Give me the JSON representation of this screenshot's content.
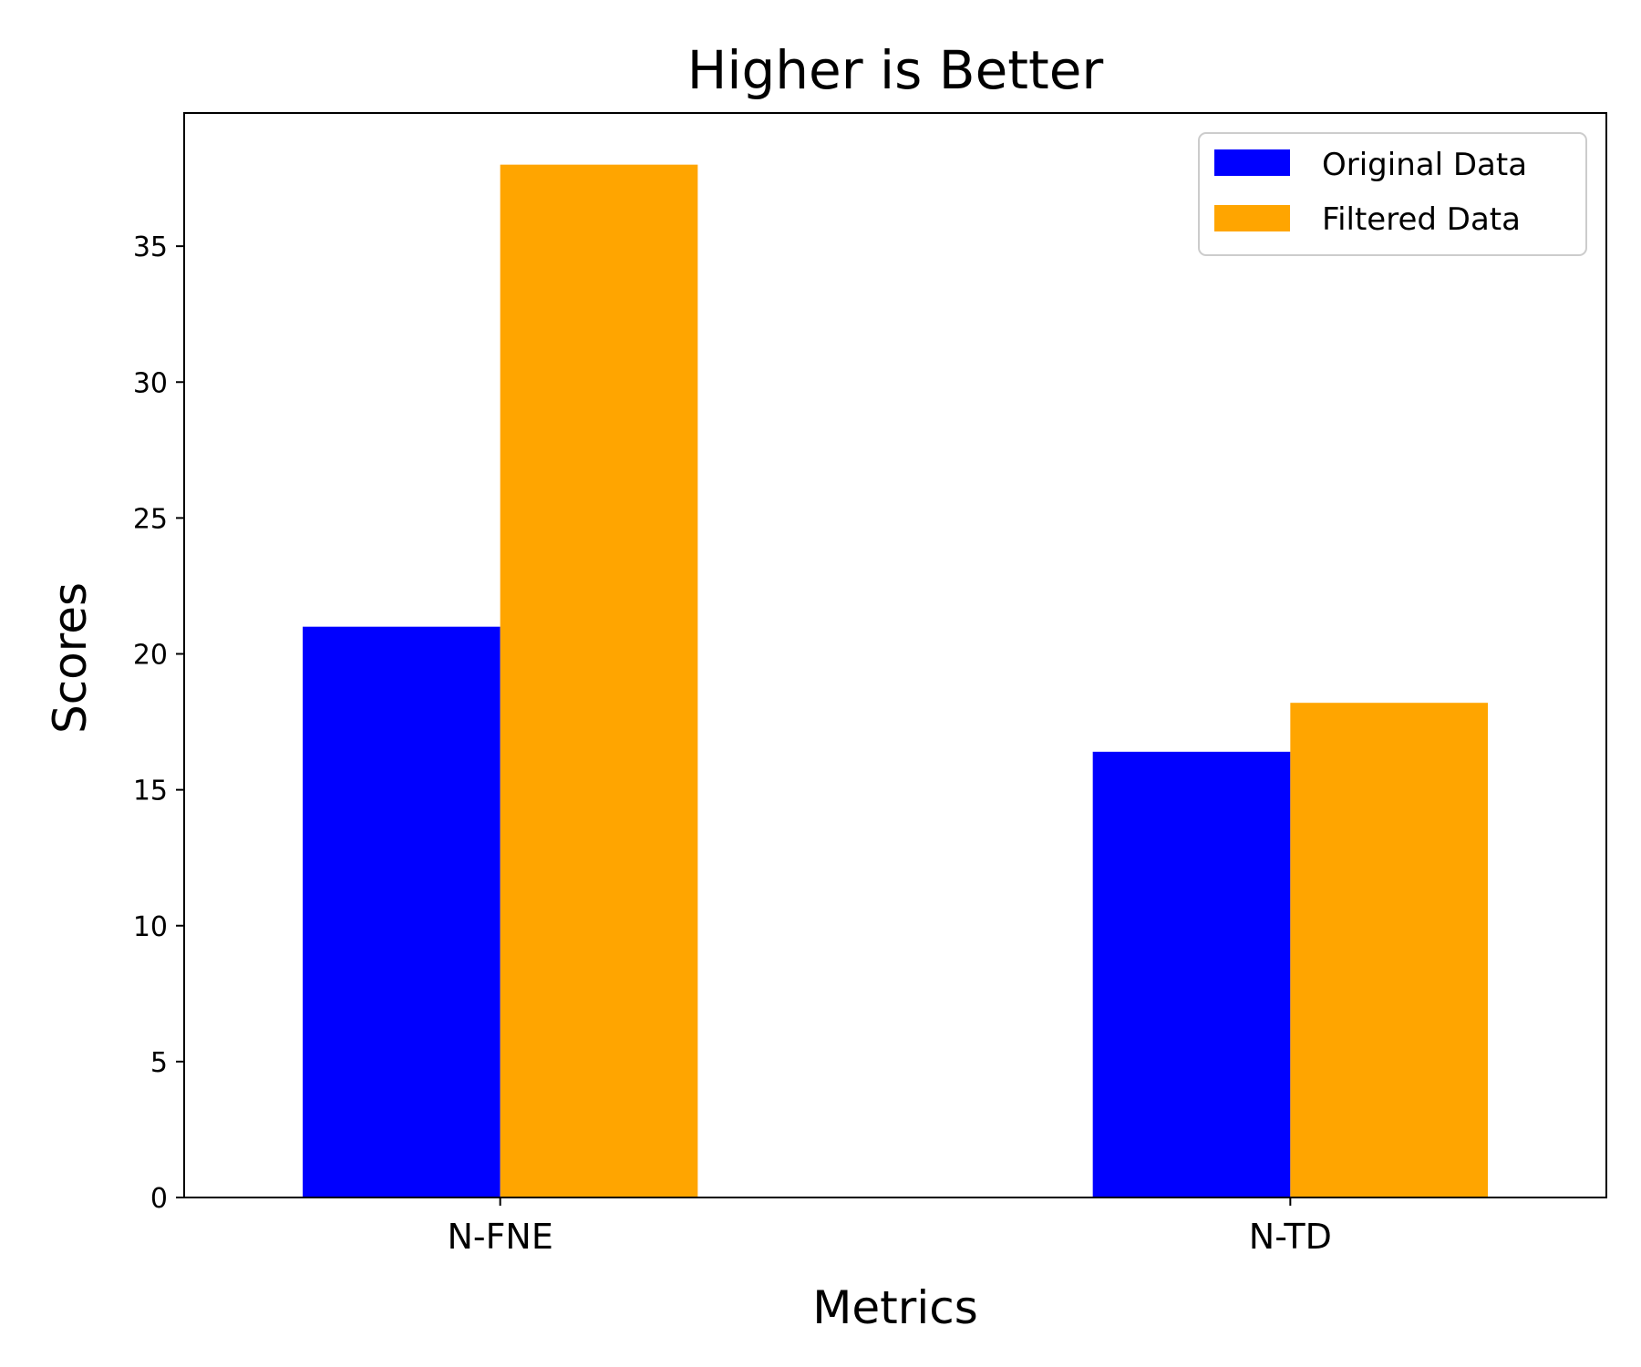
{
  "chart_data": {
    "type": "bar",
    "title": "Higher is Better",
    "xlabel": "Metrics",
    "ylabel": "Scores",
    "categories": [
      "N-FNE",
      "N-TD"
    ],
    "series": [
      {
        "name": "Original Data",
        "values": [
          21.0,
          16.4
        ],
        "color": "#0000ff"
      },
      {
        "name": "Filtered Data",
        "values": [
          38.0,
          18.2
        ],
        "color": "#ffa500"
      }
    ],
    "ylim": [
      0,
      39.9
    ],
    "yticks": [
      0,
      5,
      10,
      15,
      20,
      25,
      30,
      35
    ],
    "grid": false,
    "legend_position": "top-right"
  }
}
